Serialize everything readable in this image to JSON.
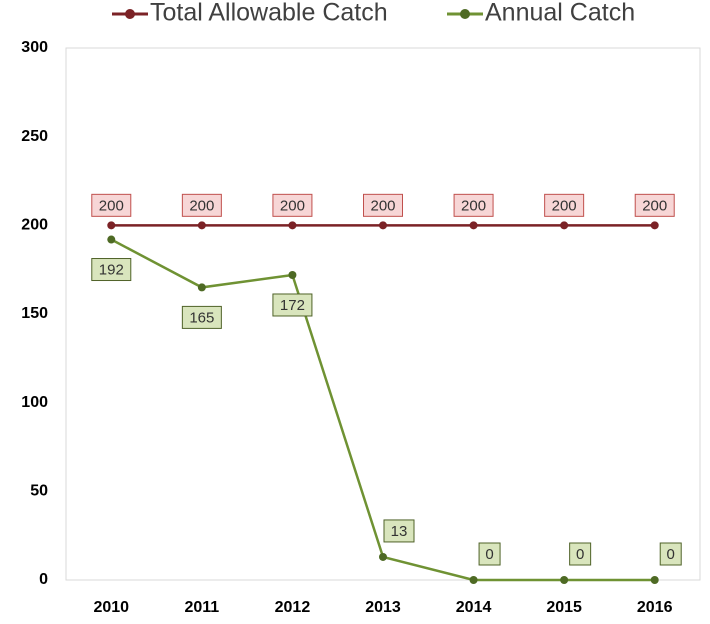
{
  "chart_data": {
    "type": "line",
    "categories": [
      "2010",
      "2011",
      "2012",
      "2013",
      "2014",
      "2015",
      "2016"
    ],
    "series": [
      {
        "name": "Total Allowable Catch",
        "color": "#7b2226",
        "label_fill": "#f7d6d6",
        "label_stroke": "#c0504d",
        "values": [
          200,
          200,
          200,
          200,
          200,
          200,
          200
        ]
      },
      {
        "name": "Annual Catch",
        "color": "#6f9233",
        "marker_color": "#4e6a24",
        "label_fill": "#d9e5bd",
        "label_stroke": "#4f6228",
        "values": [
          192,
          165,
          172,
          13,
          0,
          0,
          0
        ]
      }
    ],
    "ylim": [
      0,
      300
    ],
    "yticks": [
      0,
      50,
      100,
      150,
      200,
      250,
      300
    ],
    "grid": false,
    "legend": "top"
  }
}
